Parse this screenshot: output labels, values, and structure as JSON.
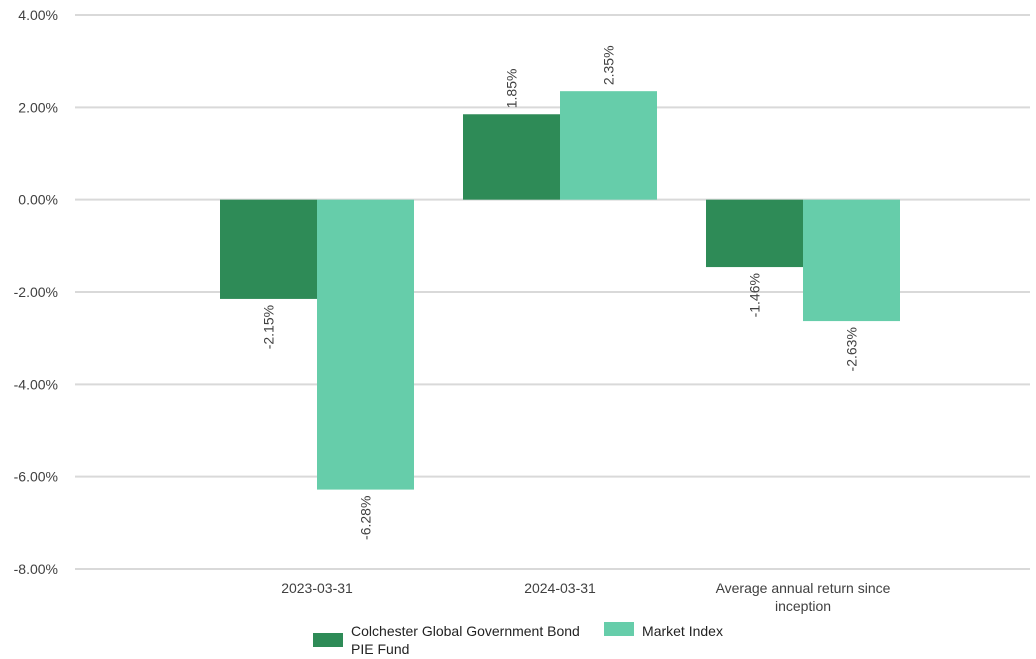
{
  "chart_data": {
    "type": "bar",
    "categories": [
      "2023-03-31",
      "2024-03-31",
      "Average annual return since inception"
    ],
    "series": [
      {
        "name": "Colchester Global Government Bond PIE Fund",
        "values": [
          -2.15,
          1.85,
          -1.46
        ],
        "labels": [
          "-2.15%",
          "1.85%",
          "-1.46%"
        ],
        "color": "#2e8b57"
      },
      {
        "name": "Market Index",
        "values": [
          -6.28,
          2.35,
          -2.63
        ],
        "labels": [
          "-6.28%",
          "2.35%",
          "-2.63%"
        ],
        "color": "#66cdaa"
      }
    ],
    "yticks": [
      "4.00%",
      "2.00%",
      "0.00%",
      "-2.00%",
      "-4.00%",
      "-6.00%",
      "-8.00%"
    ],
    "ylim": [
      -8,
      4
    ],
    "grid": true,
    "legend_position": "bottom"
  }
}
